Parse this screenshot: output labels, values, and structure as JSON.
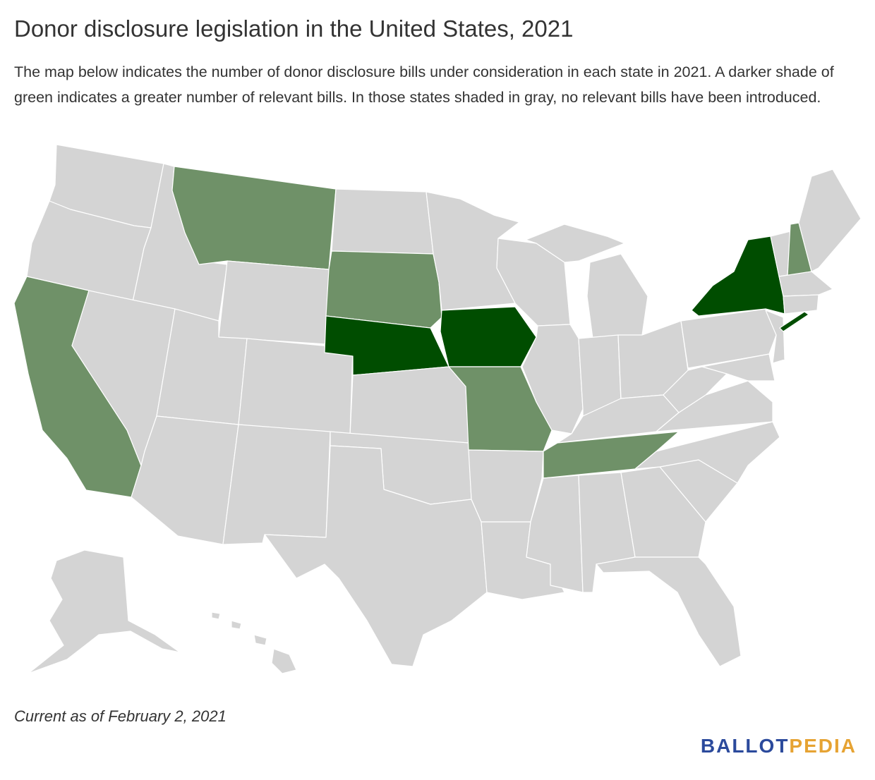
{
  "title": "Donor disclosure legislation in the United States, 2021",
  "subtitle": "The map below indicates the number of donor disclosure bills under consideration in each state in 2021. A darker shade of green indicates a greater number of relevant bills. In those states shaded in gray, no relevant bills have been introduced.",
  "note": "Current as of February 2, 2021",
  "logo": {
    "part1": "BALLOT",
    "part2": "PEDIA",
    "color1": "#2b4a9c",
    "color2": "#e6a333"
  },
  "colors": {
    "none": "#d4d4d4",
    "some": "#6f9168",
    "more": "#004d00",
    "border": "#ffffff"
  },
  "map_data": {
    "type": "choropleth",
    "region": "United States",
    "categories": {
      "more": [
        "Nebraska",
        "Iowa",
        "New York"
      ],
      "some": [
        "California",
        "Montana",
        "South Dakota",
        "Missouri",
        "Tennessee",
        "New Hampshire"
      ]
    }
  }
}
